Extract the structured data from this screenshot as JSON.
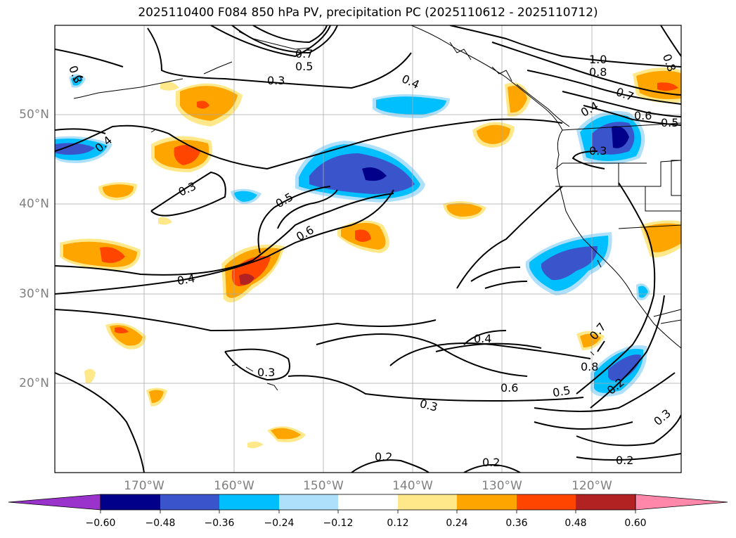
{
  "title": "2025110400 F084 850 hPa PV, precipitation PC (2025110612 - 2025110712)",
  "map": {
    "lat_labels": [
      "50°N",
      "40°N",
      "30°N",
      "20°N"
    ],
    "lon_labels": [
      "170°W",
      "160°W",
      "150°W",
      "140°W",
      "130°W",
      "120°W"
    ],
    "contour_labels": [
      "0.3",
      "0.7",
      "0.5",
      "0.3",
      "0.4",
      "1.0",
      "0.8",
      "0.7",
      "0.8",
      "0.6",
      "0.4",
      "0.5",
      "0.3",
      "0.4",
      "0.3",
      "0.5",
      "0.6",
      "0.4",
      "0.4",
      "0.7",
      "0.8",
      "0.3",
      "0.6",
      "0.5",
      "0.2",
      "0.3",
      "0.3",
      "0.2",
      "0.2",
      "0.2"
    ],
    "colors": {
      "neg_060": "#9933cc",
      "neg_048": "#00008b",
      "neg_036": "#3a55cc",
      "neg_024": "#00bfff",
      "neg_012": "#aee0fb",
      "pos_012": "#ffe88a",
      "pos_024": "#ffa500",
      "pos_036": "#ff4500",
      "pos_048": "#b22222",
      "pos_060": "#ff88aa"
    }
  },
  "colorbar": {
    "ticks": [
      "−0.60",
      "−0.48",
      "−0.36",
      "−0.24",
      "−0.12",
      "0.12",
      "0.24",
      "0.36",
      "0.48",
      "0.60"
    ],
    "colors": [
      "#9933cc",
      "#00008b",
      "#3a55cc",
      "#00bfff",
      "#aee0fb",
      "#ffffff",
      "#ffe88a",
      "#ffa500",
      "#ff4500",
      "#b22222",
      "#ff88aa"
    ]
  }
}
